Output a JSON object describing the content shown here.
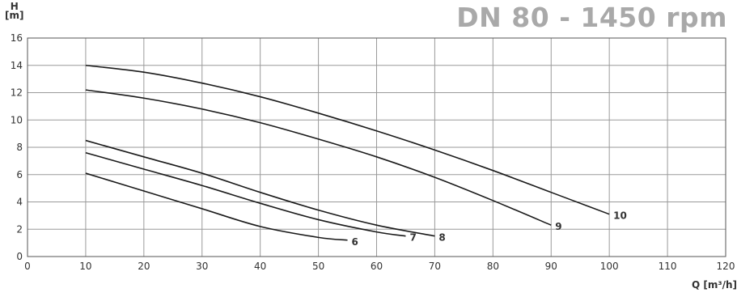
{
  "chart_data": {
    "type": "line",
    "title": "DN 80 - 1450 rpm",
    "ylabel_line1": "H",
    "ylabel_line2": "[m]",
    "xlabel": "Q [m³/h]",
    "xlim": [
      0,
      120
    ],
    "ylim": [
      0,
      16
    ],
    "xticks": [
      0,
      10,
      20,
      30,
      40,
      50,
      60,
      70,
      80,
      90,
      100,
      110,
      120
    ],
    "yticks": [
      0,
      2,
      4,
      6,
      8,
      10,
      12,
      14,
      16
    ],
    "grid": true,
    "series": [
      {
        "name": "6",
        "x": [
          10,
          20,
          30,
          40,
          50,
          55
        ],
        "y": [
          6.1,
          4.8,
          3.5,
          2.2,
          1.4,
          1.2
        ]
      },
      {
        "name": "7",
        "x": [
          10,
          20,
          30,
          40,
          50,
          60,
          65
        ],
        "y": [
          7.6,
          6.4,
          5.2,
          3.9,
          2.7,
          1.8,
          1.5
        ]
      },
      {
        "name": "8",
        "x": [
          10,
          20,
          30,
          40,
          50,
          60,
          70
        ],
        "y": [
          8.5,
          7.3,
          6.1,
          4.7,
          3.4,
          2.3,
          1.5
        ]
      },
      {
        "name": "9",
        "x": [
          10,
          20,
          30,
          40,
          50,
          60,
          70,
          80,
          90
        ],
        "y": [
          12.2,
          11.6,
          10.8,
          9.8,
          8.6,
          7.3,
          5.8,
          4.1,
          2.3
        ]
      },
      {
        "name": "10",
        "x": [
          10,
          20,
          30,
          40,
          50,
          60,
          70,
          80,
          90,
          100
        ],
        "y": [
          14.0,
          13.5,
          12.7,
          11.7,
          10.5,
          9.2,
          7.8,
          6.3,
          4.7,
          3.1
        ]
      }
    ]
  }
}
